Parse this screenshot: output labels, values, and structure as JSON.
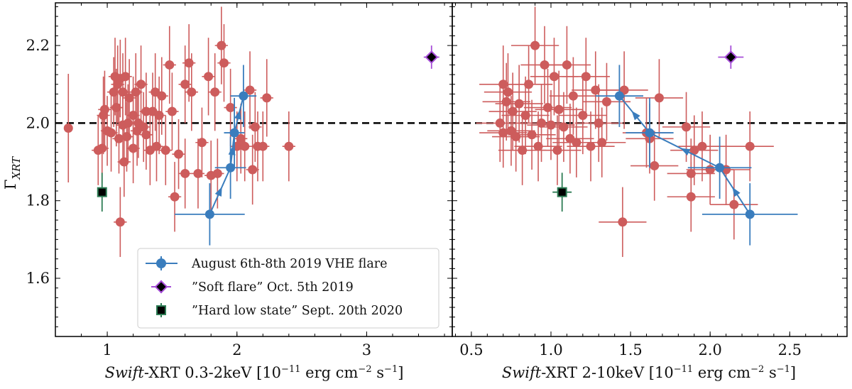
{
  "chart_data": {
    "type": "scatter",
    "ylabel": "Γ_XRT",
    "ylim": [
      1.45,
      2.31
    ],
    "yticks": [
      1.6,
      1.8,
      2.0,
      2.2
    ],
    "yticks_text": [
      "1.6",
      "1.8",
      "2.0",
      "2.2"
    ],
    "reference_line": 2.0,
    "legend": [
      {
        "label": "August 6th-8th 2019 VHE flare",
        "color": "#3a7dbd",
        "marker": "circle"
      },
      {
        "label": "”Soft flare” Oct. 5th 2019",
        "color": "#a64dd8",
        "marker": "diamond"
      },
      {
        "label": "”Hard low state” Sept. 20th 2020",
        "color": "#2e7d55",
        "marker": "square"
      }
    ],
    "panels": [
      {
        "name": "left",
        "xlabel_italic": "Swift",
        "xlabel_rest": "-XRT 0.3-2keV [10",
        "xlabel_exp1": "−11",
        "xlabel_mid": " erg cm",
        "xlabel_exp2": "−2",
        "xlabel_mid2": " s",
        "xlabel_exp3": "−1",
        "xlabel_end": "]",
        "xlim": [
          0.6,
          3.66
        ],
        "xticks": [
          1,
          2,
          3
        ],
        "xticks_text": [
          "1",
          "2",
          "3"
        ],
        "archive": [
          [
            0.7,
            1.987,
            0.0,
            0.14
          ],
          [
            0.93,
            1.93,
            0.05,
            0.09
          ],
          [
            0.96,
            1.935,
            0.05,
            0.09
          ],
          [
            0.97,
            2.02,
            0.05,
            0.1
          ],
          [
            0.98,
            2.035,
            0.05,
            0.1
          ],
          [
            1.0,
            1.98,
            0.05,
            0.09
          ],
          [
            1.03,
            1.975,
            0.05,
            0.1
          ],
          [
            1.05,
            2.08,
            0.05,
            0.09
          ],
          [
            1.06,
            2.12,
            0.05,
            0.1
          ],
          [
            1.07,
            2.04,
            0.05,
            0.1
          ],
          [
            1.08,
            2.1,
            0.05,
            0.1
          ],
          [
            1.1,
            2.115,
            0.05,
            0.1
          ],
          [
            1.09,
            1.96,
            0.05,
            0.09
          ],
          [
            1.12,
            2.08,
            0.05,
            0.1
          ],
          [
            1.12,
            1.995,
            0.05,
            0.09
          ],
          [
            1.1,
            1.745,
            0.05,
            0.09
          ],
          [
            1.13,
            1.9,
            0.05,
            0.09
          ],
          [
            1.14,
            2.12,
            0.05,
            0.1
          ],
          [
            1.15,
            1.965,
            0.05,
            0.09
          ],
          [
            1.16,
            2.0,
            0.05,
            0.1
          ],
          [
            1.17,
            2.065,
            0.05,
            0.1
          ],
          [
            1.2,
            1.935,
            0.05,
            0.09
          ],
          [
            1.2,
            2.02,
            0.05,
            0.1
          ],
          [
            1.22,
            2.08,
            0.05,
            0.1
          ],
          [
            1.23,
            1.98,
            0.05,
            0.09
          ],
          [
            1.24,
            2.0,
            0.05,
            0.09
          ],
          [
            1.26,
            2.1,
            0.05,
            0.1
          ],
          [
            1.28,
            1.99,
            0.05,
            0.09
          ],
          [
            1.3,
            1.97,
            0.05,
            0.09
          ],
          [
            1.3,
            2.03,
            0.05,
            0.1
          ],
          [
            1.33,
            1.93,
            0.05,
            0.09
          ],
          [
            1.35,
            2.03,
            0.05,
            0.1
          ],
          [
            1.37,
            2.08,
            0.05,
            0.1
          ],
          [
            1.38,
            1.94,
            0.05,
            0.09
          ],
          [
            1.4,
            2.02,
            0.05,
            0.1
          ],
          [
            1.42,
            2.07,
            0.05,
            0.1
          ],
          [
            1.45,
            1.93,
            0.05,
            0.09
          ],
          [
            1.48,
            2.15,
            0.05,
            0.1
          ],
          [
            1.5,
            2.03,
            0.05,
            0.1
          ],
          [
            1.52,
            1.81,
            0.05,
            0.09
          ],
          [
            1.55,
            1.92,
            0.05,
            0.09
          ],
          [
            1.6,
            1.87,
            0.05,
            0.09
          ],
          [
            1.6,
            2.1,
            0.05,
            0.1
          ],
          [
            1.63,
            2.155,
            0.05,
            0.1
          ],
          [
            1.65,
            2.08,
            0.05,
            0.1
          ],
          [
            1.7,
            1.87,
            0.05,
            0.09
          ],
          [
            1.73,
            1.95,
            0.05,
            0.09
          ],
          [
            1.78,
            2.12,
            0.05,
            0.1
          ],
          [
            1.8,
            1.865,
            0.05,
            0.09
          ],
          [
            1.83,
            2.08,
            0.05,
            0.1
          ],
          [
            1.85,
            1.87,
            0.05,
            0.09
          ],
          [
            1.88,
            2.2,
            0.05,
            0.1
          ],
          [
            1.9,
            2.155,
            0.05,
            0.1
          ],
          [
            1.95,
            2.04,
            0.05,
            0.1
          ],
          [
            2.0,
            1.94,
            0.05,
            0.09
          ],
          [
            2.03,
            1.96,
            0.05,
            0.09
          ],
          [
            2.06,
            1.94,
            0.05,
            0.09
          ],
          [
            2.1,
            2.085,
            0.05,
            0.1
          ],
          [
            2.12,
            1.88,
            0.05,
            0.09
          ],
          [
            2.14,
            1.99,
            0.05,
            0.09
          ],
          [
            2.16,
            1.94,
            0.05,
            0.09
          ],
          [
            2.2,
            1.94,
            0.05,
            0.09
          ],
          [
            2.23,
            2.065,
            0.05,
            0.1
          ],
          [
            2.4,
            1.94,
            0.05,
            0.09
          ]
        ],
        "flare": [
          [
            1.79,
            1.765,
            0.27,
            0.08
          ],
          [
            1.95,
            1.885,
            0.12,
            0.08
          ],
          [
            1.98,
            1.975,
            0.08,
            0.09
          ],
          [
            2.05,
            2.07,
            0.1,
            0.08
          ]
        ],
        "soft_flare": [
          3.5,
          2.17,
          0.06,
          0.03
        ],
        "hard_low": [
          0.96,
          1.822,
          0.03,
          0.05
        ]
      },
      {
        "name": "right",
        "xlabel_italic": "Swift",
        "xlabel_rest": "-XRT 2-10keV [10",
        "xlabel_exp1": "−11",
        "xlabel_mid": " erg cm",
        "xlabel_exp2": "−2",
        "xlabel_mid2": " s",
        "xlabel_exp3": "−1",
        "xlabel_end": "]",
        "xlim": [
          0.38,
          2.86
        ],
        "xticks": [
          0.5,
          1.0,
          1.5,
          2.0,
          2.5
        ],
        "xticks_text": [
          "0.5",
          "1.0",
          "1.5",
          "2.0",
          "2.5"
        ],
        "archive": [
          [
            0.68,
            2.0,
            0.15,
            0.1
          ],
          [
            0.7,
            2.1,
            0.15,
            0.1
          ],
          [
            0.7,
            1.975,
            0.15,
            0.09
          ],
          [
            0.72,
            2.055,
            0.15,
            0.1
          ],
          [
            0.73,
            2.08,
            0.15,
            0.1
          ],
          [
            0.75,
            1.98,
            0.15,
            0.09
          ],
          [
            0.76,
            2.03,
            0.15,
            0.1
          ],
          [
            0.78,
            1.965,
            0.15,
            0.09
          ],
          [
            0.8,
            2.05,
            0.15,
            0.1
          ],
          [
            0.82,
            1.93,
            0.15,
            0.09
          ],
          [
            0.84,
            2.02,
            0.15,
            0.1
          ],
          [
            0.86,
            2.1,
            0.15,
            0.1
          ],
          [
            0.88,
            1.97,
            0.15,
            0.09
          ],
          [
            0.9,
            2.2,
            0.15,
            0.1
          ],
          [
            0.92,
            1.94,
            0.15,
            0.09
          ],
          [
            0.94,
            2.0,
            0.15,
            0.1
          ],
          [
            0.96,
            2.15,
            0.15,
            0.1
          ],
          [
            0.98,
            2.04,
            0.15,
            0.1
          ],
          [
            1.0,
            1.995,
            0.15,
            0.09
          ],
          [
            1.02,
            2.12,
            0.15,
            0.1
          ],
          [
            1.04,
            1.93,
            0.15,
            0.09
          ],
          [
            1.05,
            2.035,
            0.15,
            0.1
          ],
          [
            1.08,
            1.99,
            0.15,
            0.09
          ],
          [
            1.1,
            2.15,
            0.15,
            0.1
          ],
          [
            1.12,
            1.96,
            0.15,
            0.09
          ],
          [
            1.14,
            2.07,
            0.15,
            0.1
          ],
          [
            1.16,
            1.95,
            0.15,
            0.09
          ],
          [
            1.2,
            2.02,
            0.15,
            0.1
          ],
          [
            1.22,
            2.12,
            0.15,
            0.1
          ],
          [
            1.25,
            1.94,
            0.15,
            0.09
          ],
          [
            1.28,
            2.085,
            0.15,
            0.1
          ],
          [
            1.3,
            2.0,
            0.15,
            0.1
          ],
          [
            1.32,
            1.95,
            0.15,
            0.09
          ],
          [
            1.35,
            2.055,
            0.15,
            0.1
          ],
          [
            1.45,
            1.745,
            0.15,
            0.09
          ],
          [
            1.46,
            2.085,
            0.15,
            0.1
          ],
          [
            1.6,
            1.975,
            0.15,
            0.09
          ],
          [
            1.62,
            1.96,
            0.15,
            0.09
          ],
          [
            1.65,
            1.89,
            0.15,
            0.09
          ],
          [
            1.68,
            2.065,
            0.15,
            0.1
          ],
          [
            1.85,
            1.99,
            0.15,
            0.09
          ],
          [
            1.88,
            1.87,
            0.15,
            0.09
          ],
          [
            1.88,
            1.81,
            0.15,
            0.09
          ],
          [
            1.9,
            1.93,
            0.15,
            0.09
          ],
          [
            1.95,
            1.94,
            0.15,
            0.09
          ],
          [
            2.0,
            1.88,
            0.15,
            0.09
          ],
          [
            2.1,
            1.88,
            0.15,
            0.09
          ],
          [
            2.15,
            1.79,
            0.15,
            0.09
          ],
          [
            2.25,
            1.94,
            0.15,
            0.09
          ]
        ],
        "flare": [
          [
            2.25,
            1.765,
            0.3,
            0.08
          ],
          [
            2.06,
            1.885,
            0.2,
            0.08
          ],
          [
            1.62,
            1.975,
            0.15,
            0.09
          ],
          [
            1.43,
            2.07,
            0.15,
            0.08
          ]
        ],
        "soft_flare": [
          2.13,
          2.17,
          0.08,
          0.03
        ],
        "hard_low": [
          1.07,
          1.822,
          0.06,
          0.05
        ]
      }
    ]
  }
}
